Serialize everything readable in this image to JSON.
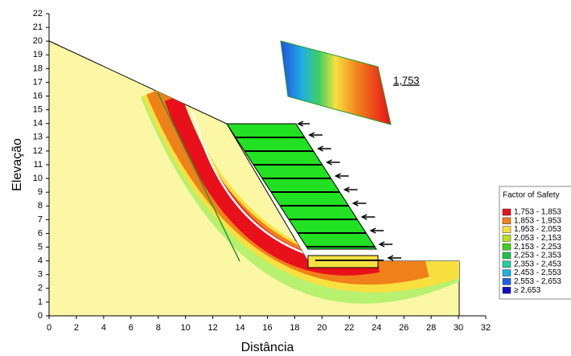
{
  "chart_data": {
    "type": "slope-stability",
    "x_label": "Distância",
    "y_label": "Elevação",
    "xlim": [
      0,
      32
    ],
    "ylim": [
      0,
      22
    ],
    "xticks": [
      0,
      2,
      4,
      6,
      8,
      10,
      12,
      14,
      16,
      18,
      20,
      22,
      24,
      26,
      28,
      30,
      32
    ],
    "yticks": [
      0,
      1,
      2,
      3,
      4,
      5,
      6,
      7,
      8,
      9,
      10,
      11,
      12,
      13,
      14,
      15,
      16,
      17,
      18,
      19,
      20,
      21,
      22
    ],
    "annotation": "1,753",
    "legend": {
      "title": "Factor of Safety",
      "position": "right",
      "items": [
        {
          "label": "1,753 - 1,853",
          "color": "#e8101a"
        },
        {
          "label": "1,853 - 1,953",
          "color": "#f0801a"
        },
        {
          "label": "1,953 - 2,053",
          "color": "#f8e040"
        },
        {
          "label": "2,053 - 2,153",
          "color": "#b8e020"
        },
        {
          "label": "2,153 - 2,253",
          "color": "#40d020"
        },
        {
          "label": "2,253 - 2,353",
          "color": "#20c050"
        },
        {
          "label": "2,353 - 2,453",
          "color": "#20d0a0"
        },
        {
          "label": "2,453 - 2,553",
          "color": "#20b0e0"
        },
        {
          "label": "2,553 - 2,653",
          "color": "#2060e0"
        },
        {
          "label": "≥ 2,653",
          "color": "#1010c0"
        }
      ]
    }
  }
}
